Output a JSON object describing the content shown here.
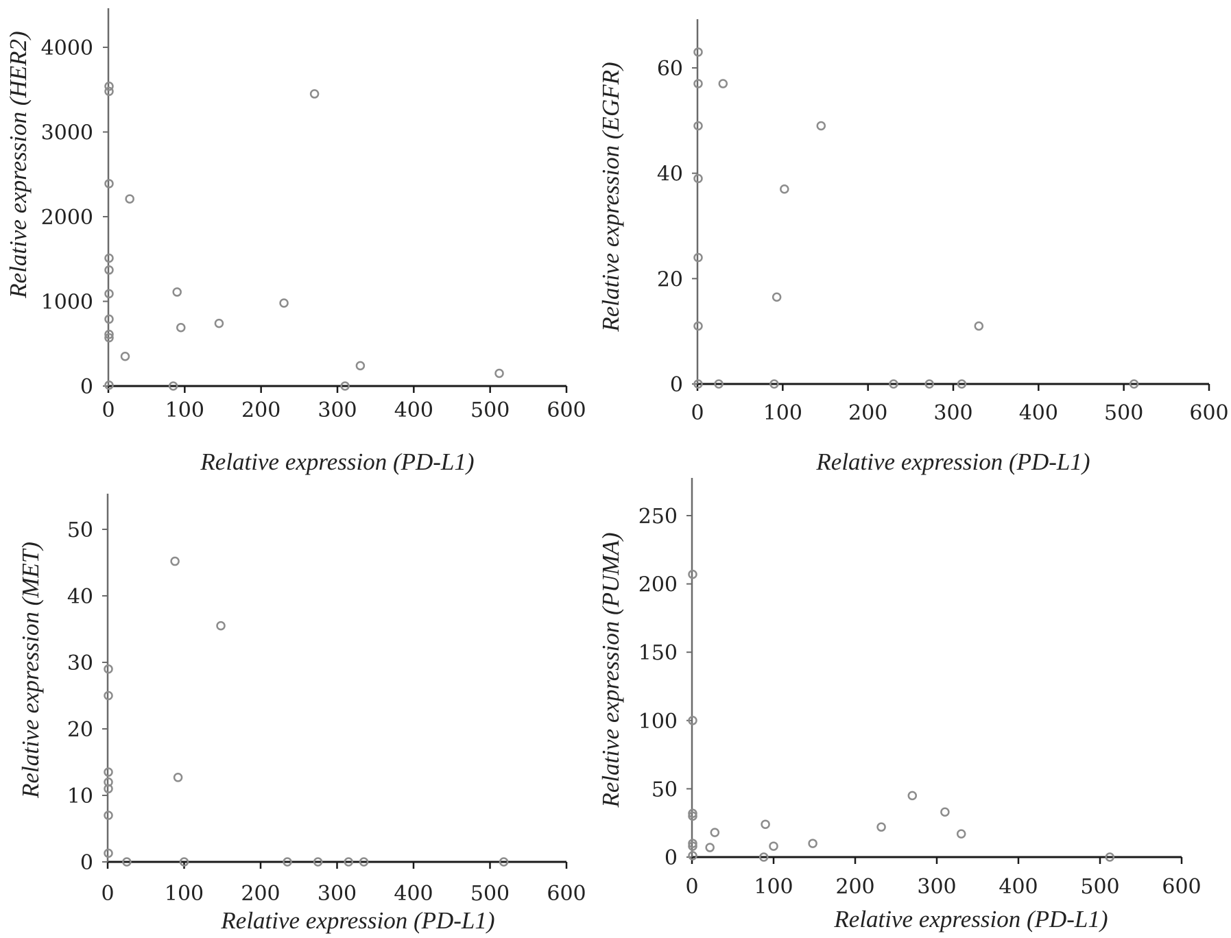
{
  "colors": {
    "axis": "#1a1a1a",
    "marker": "#8c8c8c"
  },
  "chart_data": [
    {
      "type": "scatter",
      "xlabel": "Relative expression (PD-L1)",
      "ylabel": "Relative expression (HER2)",
      "xlim": [
        0,
        600
      ],
      "ylim": [
        0,
        4000
      ],
      "xticks": [
        "0",
        "100",
        "200",
        "300",
        "400",
        "500",
        "600"
      ],
      "yticks": [
        "0",
        "1000",
        "2000",
        "3000",
        "4000"
      ],
      "grid": false,
      "points": [
        [
          0,
          3540
        ],
        [
          0,
          3480
        ],
        [
          0,
          2390
        ],
        [
          0,
          1510
        ],
        [
          0,
          1370
        ],
        [
          0,
          1090
        ],
        [
          0,
          790
        ],
        [
          0,
          610
        ],
        [
          0,
          570
        ],
        [
          0,
          10
        ],
        [
          22,
          350
        ],
        [
          28,
          2210
        ],
        [
          85,
          0
        ],
        [
          90,
          1110
        ],
        [
          95,
          690
        ],
        [
          145,
          740
        ],
        [
          230,
          980
        ],
        [
          270,
          3450
        ],
        [
          310,
          0
        ],
        [
          330,
          240
        ],
        [
          512,
          150
        ]
      ]
    },
    {
      "type": "scatter",
      "xlabel": "Relative expression (PD-L1)",
      "ylabel": "Relative expression (EGFR)",
      "xlim": [
        0,
        600
      ],
      "ylim": [
        0,
        60
      ],
      "xticks": [
        "0",
        "100",
        "200",
        "300",
        "400",
        "500",
        "600"
      ],
      "yticks": [
        "0",
        "20",
        "40",
        "60"
      ],
      "grid": false,
      "points": [
        [
          0,
          63
        ],
        [
          0,
          57
        ],
        [
          0,
          49
        ],
        [
          0,
          39
        ],
        [
          0,
          24
        ],
        [
          0,
          11
        ],
        [
          0,
          0
        ],
        [
          25,
          0
        ],
        [
          30,
          57
        ],
        [
          90,
          0
        ],
        [
          93,
          16.5
        ],
        [
          102,
          37
        ],
        [
          145,
          49
        ],
        [
          230,
          0
        ],
        [
          272,
          0
        ],
        [
          310,
          0
        ],
        [
          330,
          11
        ],
        [
          512,
          0
        ]
      ]
    },
    {
      "type": "scatter",
      "xlabel": "Relative expression (PD-L1)",
      "ylabel": "Relative expression (MET)",
      "xlim": [
        0,
        600
      ],
      "ylim": [
        0,
        50
      ],
      "xticks": [
        "0",
        "100",
        "200",
        "300",
        "400",
        "500",
        "600"
      ],
      "yticks": [
        "0",
        "10",
        "20",
        "30",
        "40",
        "50"
      ],
      "grid": false,
      "points": [
        [
          0,
          29
        ],
        [
          0,
          25
        ],
        [
          0,
          13.5
        ],
        [
          0,
          12
        ],
        [
          0,
          11
        ],
        [
          0,
          7
        ],
        [
          0,
          1.3
        ],
        [
          25,
          0
        ],
        [
          88,
          45.2
        ],
        [
          92,
          12.7
        ],
        [
          100,
          0
        ],
        [
          148,
          35.5
        ],
        [
          235,
          0
        ],
        [
          275,
          0
        ],
        [
          315,
          0
        ],
        [
          335,
          0
        ],
        [
          518,
          0
        ]
      ]
    },
    {
      "type": "scatter",
      "xlabel": "Relative expression (PD-L1)",
      "ylabel": "Relative expression (PUMA)",
      "xlim": [
        0,
        600
      ],
      "ylim": [
        0,
        250
      ],
      "xticks": [
        "0",
        "100",
        "200",
        "300",
        "400",
        "500",
        "600"
      ],
      "yticks": [
        "0",
        "50",
        "100",
        "150",
        "200",
        "250"
      ],
      "grid": false,
      "points": [
        [
          0,
          207
        ],
        [
          0,
          100
        ],
        [
          0,
          32
        ],
        [
          0,
          30
        ],
        [
          0,
          10
        ],
        [
          0,
          8
        ],
        [
          0,
          1
        ],
        [
          22,
          7
        ],
        [
          28,
          18
        ],
        [
          88,
          0
        ],
        [
          90,
          24
        ],
        [
          100,
          8
        ],
        [
          148,
          10
        ],
        [
          232,
          22
        ],
        [
          270,
          45
        ],
        [
          310,
          33
        ],
        [
          330,
          17
        ],
        [
          512,
          0
        ]
      ]
    }
  ]
}
